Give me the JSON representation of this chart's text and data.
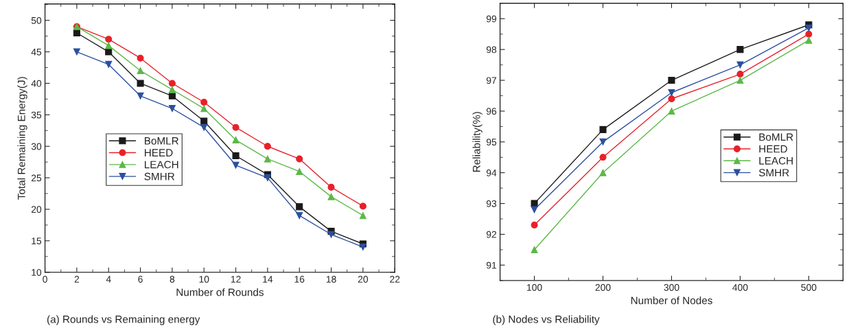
{
  "chart_data": [
    {
      "type": "line",
      "xlabel": "Number of Rounds",
      "ylabel": "Total Remaining Energy(J)",
      "annotations": [
        "(a) Rounds vs Remaining energy"
      ],
      "x": [
        2,
        4,
        6,
        8,
        10,
        12,
        14,
        16,
        18,
        20
      ],
      "xlim": [
        0,
        22
      ],
      "xticks": [
        0,
        2,
        4,
        6,
        8,
        10,
        12,
        14,
        16,
        18,
        20,
        22
      ],
      "ylim": [
        10,
        52.6
      ],
      "yticks": [
        10,
        15,
        20,
        25,
        30,
        35,
        40,
        45,
        50
      ],
      "legend": "center left",
      "grid": false,
      "line_style": "solid",
      "series": [
        {
          "name": "BoMLR",
          "color": "#1a1a1a",
          "marker": "square",
          "values": [
            48,
            45,
            40,
            38,
            34,
            28.5,
            25.5,
            20.4,
            16.5,
            14.5
          ]
        },
        {
          "name": "HEED",
          "color": "#e8202a",
          "marker": "circle",
          "values": [
            49,
            47,
            44,
            40,
            37,
            33,
            30,
            28,
            23.5,
            20.5
          ]
        },
        {
          "name": "LEACH",
          "color": "#5cb848",
          "marker": "triangle",
          "values": [
            49,
            46,
            42,
            39,
            36,
            31,
            28,
            26,
            22,
            19
          ]
        },
        {
          "name": "SMHR",
          "color": "#2b4fa0",
          "marker": "triangle_down",
          "values": [
            45,
            43,
            38,
            36,
            33,
            27,
            25,
            19,
            16,
            14
          ]
        }
      ]
    },
    {
      "type": "line",
      "xlabel": "Number of Nodes",
      "ylabel": "Reliability(%)",
      "annotations": [
        "(b) Nodes vs Reliability"
      ],
      "x": [
        100,
        200,
        300,
        400,
        500
      ],
      "xlim": [
        50,
        550
      ],
      "xticks": [
        100,
        200,
        300,
        400,
        500
      ],
      "ylim": [
        90.5,
        99.5
      ],
      "yticks": [
        91,
        92,
        93,
        94,
        95,
        96,
        97,
        98,
        99
      ],
      "legend": "center right",
      "grid": false,
      "line_style": "solid",
      "series": [
        {
          "name": "BoMLR",
          "color": "#1a1a1a",
          "marker": "square",
          "values": [
            93,
            95.4,
            97,
            98,
            98.8
          ]
        },
        {
          "name": "HEED",
          "color": "#e8202a",
          "marker": "circle",
          "values": [
            92.3,
            94.5,
            96.4,
            97.2,
            98.5
          ]
        },
        {
          "name": "LEACH",
          "color": "#5cb848",
          "marker": "triangle",
          "values": [
            91.5,
            94,
            96,
            97,
            98.3
          ]
        },
        {
          "name": "SMHR",
          "color": "#2b4fa0",
          "marker": "triangle_down",
          "values": [
            92.8,
            95,
            96.6,
            97.5,
            98.7
          ]
        }
      ]
    }
  ]
}
